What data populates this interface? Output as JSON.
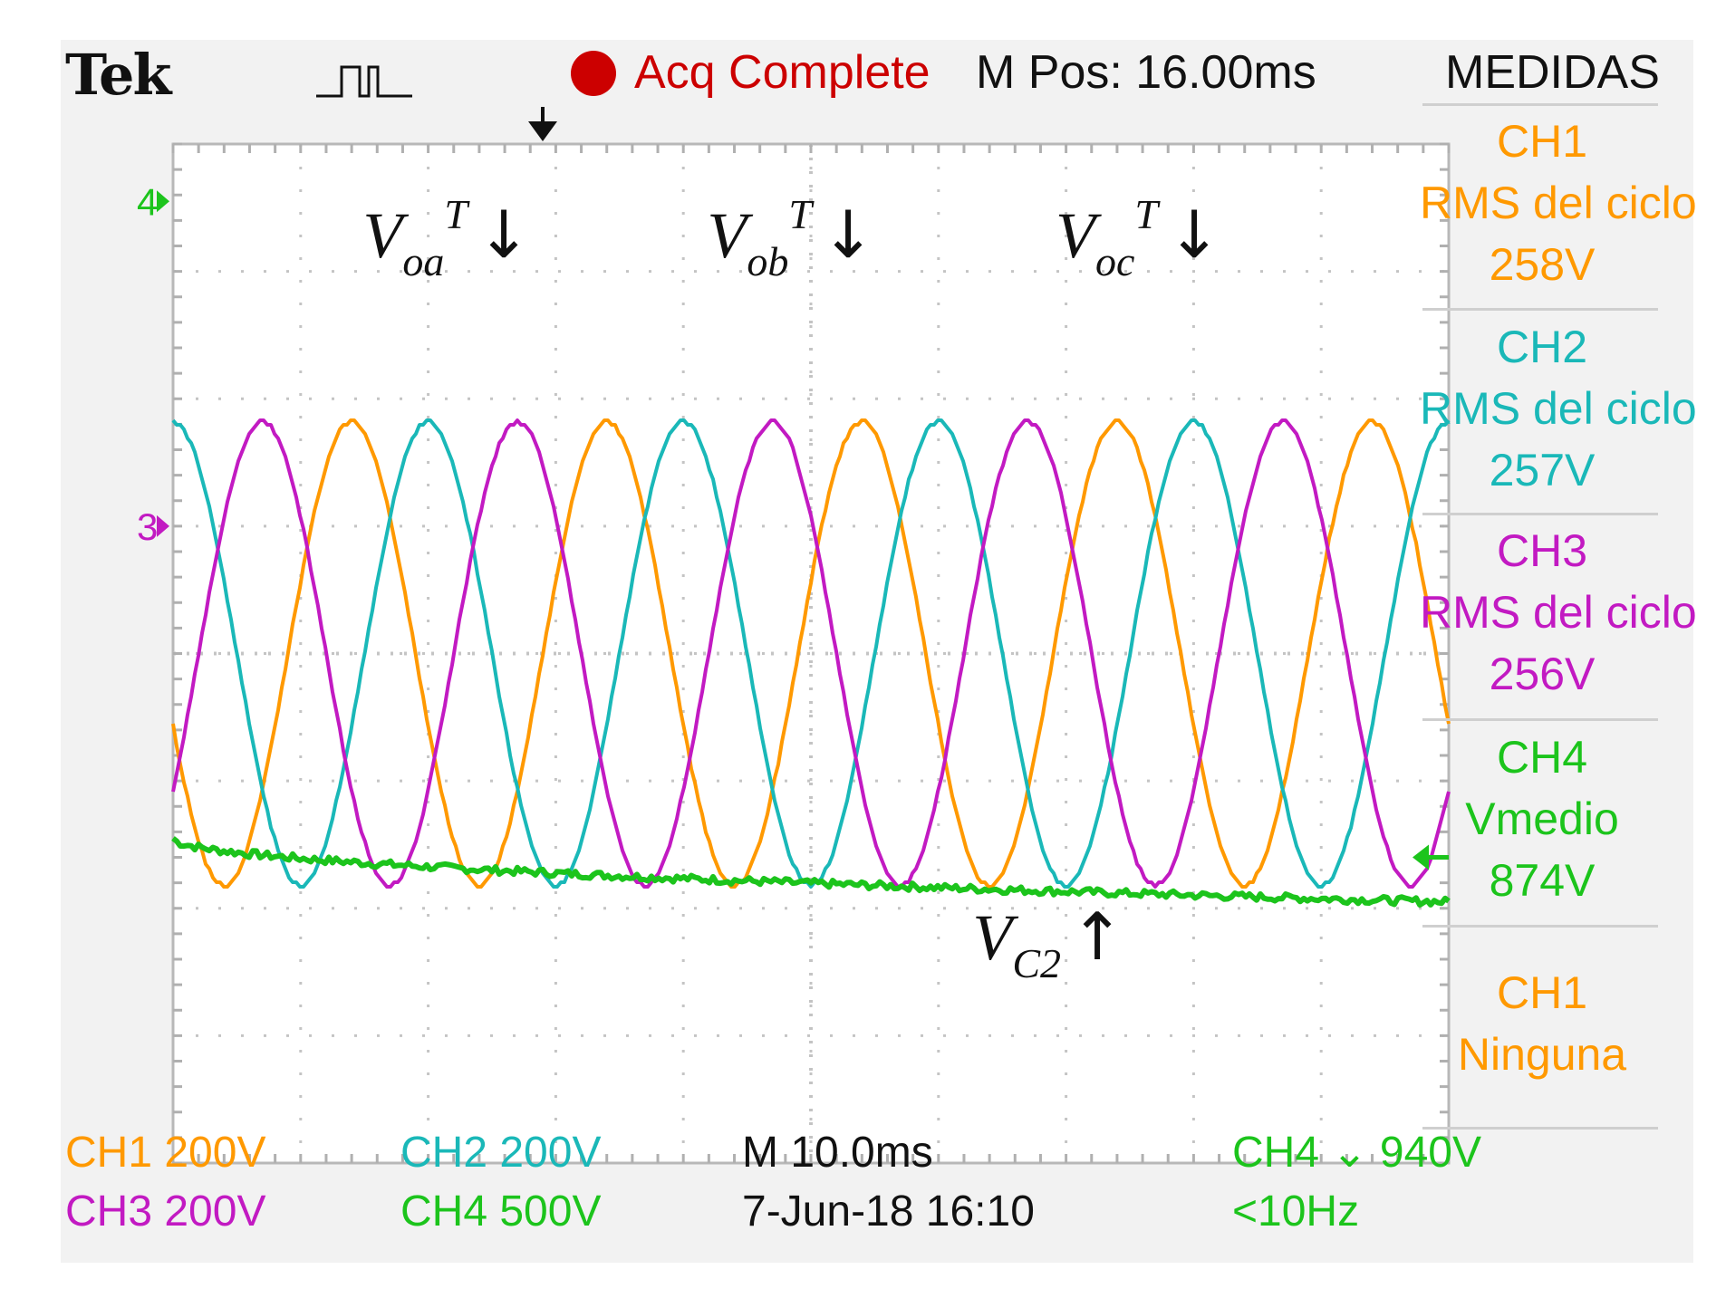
{
  "header": {
    "brand": "Tek",
    "acq_status": "Acq Complete",
    "m_pos": "M Pos: 16.00ms",
    "measurements_title": "MEDIDAS"
  },
  "colors": {
    "ch1": "#ff9900",
    "ch2": "#1ab8b8",
    "ch3": "#c21ac2",
    "ch4": "#1cc41c",
    "acq": "#cc0000"
  },
  "chart_data": {
    "type": "line",
    "x": {
      "divisions": 10,
      "units_per_div": "10.0ms",
      "range": [
        0,
        100
      ]
    },
    "y": {
      "divisions": 8
    },
    "grid": true,
    "markers": {
      "ch3_ground": "3",
      "ch4_ground": "4"
    },
    "series": [
      {
        "name": "CH1",
        "color": "#ff9900",
        "amplitude_div": 1.82,
        "period_div": 2.0,
        "phase_peak_div": 1.4,
        "offset_div": 0.0
      },
      {
        "name": "CH2",
        "color": "#1ab8b8",
        "amplitude_div": 1.82,
        "period_div": 2.0,
        "phase_peak_div": 0.0,
        "offset_div": 0.0
      },
      {
        "name": "CH3",
        "color": "#c21ac2",
        "amplitude_div": 1.82,
        "period_div": 2.0,
        "phase_peak_div": 0.7,
        "offset_div": 0.0
      },
      {
        "name": "CH4",
        "color": "#1cc41c",
        "start_div": -1.45,
        "end_div": -1.95
      }
    ],
    "annotations": [
      {
        "main": "V",
        "sub": "oa",
        "sup": "T",
        "arrow": "↓"
      },
      {
        "main": "V",
        "sub": "ob",
        "sup": "T",
        "arrow": "↓"
      },
      {
        "main": "V",
        "sub": "oc",
        "sup": "T",
        "arrow": "↓"
      },
      {
        "main": "V",
        "sub": "C2",
        "sup": "",
        "arrow": "↑"
      }
    ]
  },
  "measurements": [
    {
      "channel": "CH1",
      "type": "RMS del ciclo",
      "value": "258V",
      "color": "#ff9900"
    },
    {
      "channel": "CH2",
      "type": "RMS del ciclo",
      "value": "257V",
      "color": "#1ab8b8"
    },
    {
      "channel": "CH3",
      "type": "RMS del ciclo",
      "value": "256V",
      "color": "#c21ac2"
    },
    {
      "channel": "CH4",
      "type": "Vmedio",
      "value": "874V",
      "color": "#1cc41c"
    },
    {
      "channel": "CH1",
      "type": "Ninguna",
      "value": "",
      "color": "#ff9900"
    }
  ],
  "footer": {
    "ch1": "CH1  200V",
    "ch3": "CH3  200V",
    "ch2": "CH2  200V",
    "ch4": "CH4  500V",
    "timebase": "M 10.0ms",
    "datetime": "7-Jun-18 16:10",
    "trigger": "CH4 ⌄ 940V",
    "freq": "<10Hz"
  }
}
